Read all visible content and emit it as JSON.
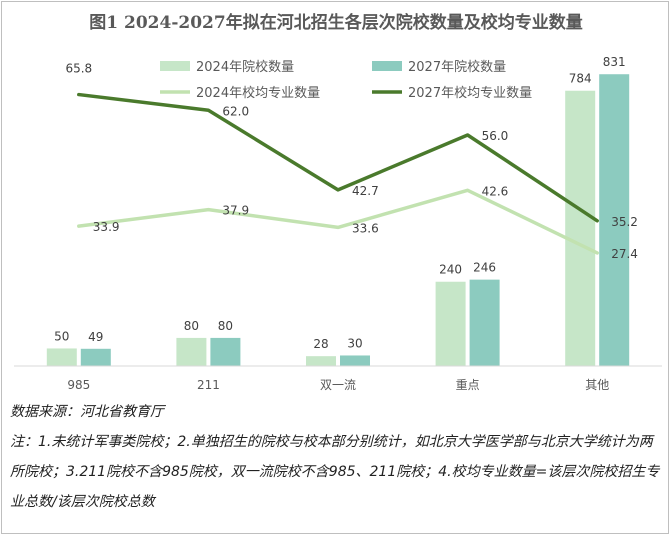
{
  "chart_data": {
    "type": "bar",
    "title": "图1 2024-2027年拟在河北招生各层次院校数量及校均专业数量",
    "categories": [
      "985",
      "211",
      "双一流",
      "重点",
      "其他"
    ],
    "series": [
      {
        "name": "2024年院校数量",
        "kind": "bar",
        "color": "#c6e6c8",
        "values": [
          50,
          80,
          28,
          240,
          784
        ]
      },
      {
        "name": "2027年院校数量",
        "kind": "bar",
        "color": "#8ccbbf",
        "values": [
          49,
          80,
          30,
          246,
          831
        ]
      },
      {
        "name": "2024年校均专业数量",
        "kind": "line",
        "color": "#c2e2b0",
        "values": [
          33.9,
          37.9,
          33.6,
          42.6,
          27.4
        ]
      },
      {
        "name": "2027年校均专业数量",
        "kind": "line",
        "color": "#4a7a2c",
        "values": [
          65.8,
          62.0,
          42.7,
          56.0,
          35.2
        ]
      }
    ],
    "bar_ylim": [
      0,
      900
    ],
    "line_ylim": [
      0,
      80
    ],
    "grid": false,
    "legend_position": "top"
  },
  "notes": {
    "source": "数据来源：河北省教育厅",
    "footnote": "注：1.未统计军事类院校；2.单独招生的院校与校本部分别统计，如北京大学医学部与北京大学统计为两所院校；3.211院校不含985院校，双一流院校不含985、211院校；4.校均专业数量=该层次院校招生专业总数/该层次院校总数"
  }
}
